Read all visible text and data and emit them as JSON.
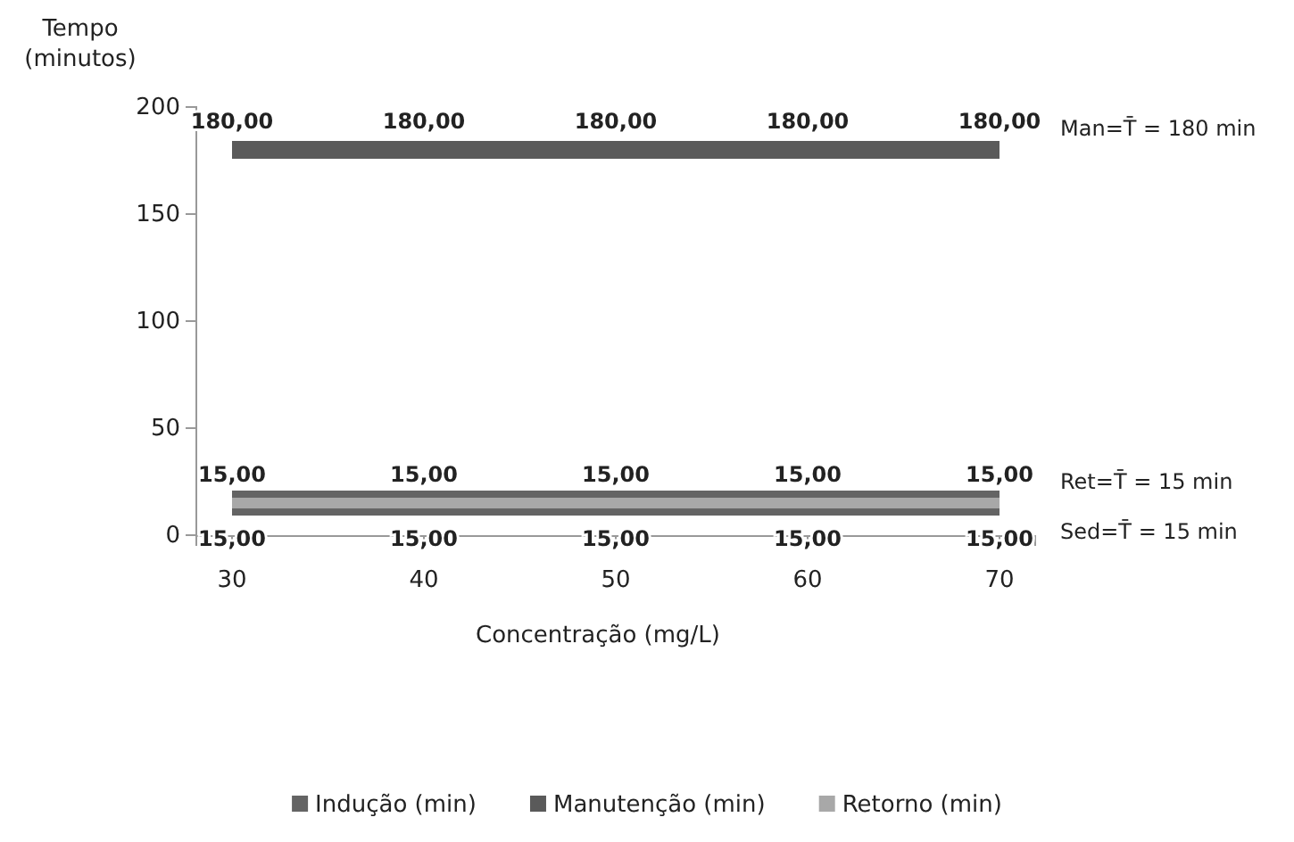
{
  "chart_data": {
    "type": "line",
    "ylabel": "Tempo (minutos)",
    "xlabel": "Concentração (mg/L)",
    "categories": [
      "30",
      "40",
      "50",
      "60",
      "70"
    ],
    "series": [
      {
        "name": "Indução (min)",
        "color": "#646464",
        "values": [
          15,
          15,
          15,
          15,
          15
        ],
        "value_labels": [
          "15,00",
          "15,00",
          "15,00",
          "15,00",
          "15,00"
        ]
      },
      {
        "name": "Manutenção (min)",
        "color": "#5a5a5a",
        "values": [
          180,
          180,
          180,
          180,
          180
        ],
        "value_labels": [
          "180,00",
          "180,00",
          "180,00",
          "180,00",
          "180,00"
        ]
      },
      {
        "name": "Retorno (min)",
        "color": "#a8a8a8",
        "values": [
          15,
          15,
          15,
          15,
          15
        ],
        "value_labels": [
          "15,00",
          "15,00",
          "15,00",
          "15,00",
          "15,00"
        ]
      }
    ],
    "annotations": [
      "Sed=T̄ = 15 min",
      "Man=T̄ = 180 min",
      "Ret=T̄ = 15 min"
    ],
    "ylim": [
      0,
      200
    ],
    "yticks": [
      0,
      50,
      100,
      150,
      200
    ],
    "legend": "bottom",
    "marker": "none",
    "line_style": "solid"
  }
}
